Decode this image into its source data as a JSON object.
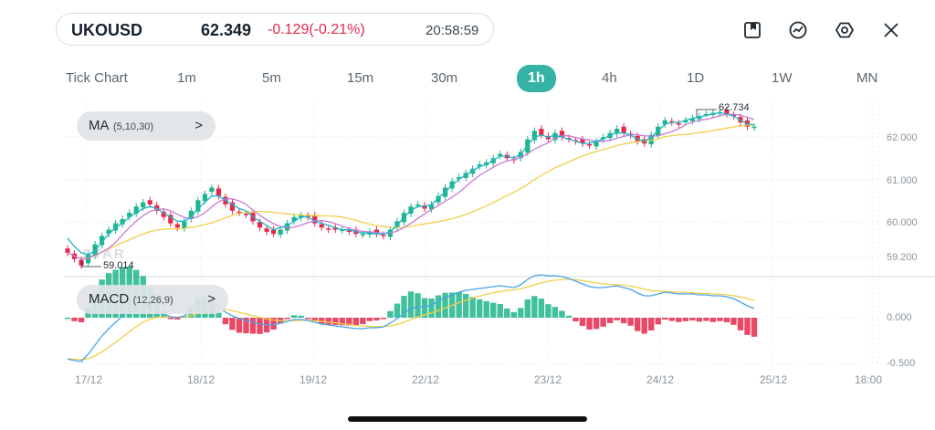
{
  "ticker": {
    "symbol": "UKOUSD",
    "price": "62.349",
    "change": "-0.129(-0.21%)",
    "time": "20:58:59"
  },
  "toolbar": {
    "icons": [
      "bookmark-icon",
      "trend-icon",
      "settings-hexagon-icon",
      "close-icon"
    ]
  },
  "timeframes": {
    "items": [
      "Tick Chart",
      "1m",
      "5m",
      "15m",
      "30m",
      "1h",
      "4h",
      "1D",
      "1W",
      "MN"
    ],
    "active": "1h"
  },
  "indicators": {
    "ma": {
      "name": "MA",
      "params": "(5,10,30)",
      "arrow": ">"
    },
    "macd": {
      "name": "MACD",
      "params": "(12,26,9)",
      "arrow": ">"
    }
  },
  "price_chart": {
    "y_ticks": [
      "62.000",
      "61.000",
      "60.000",
      "59.200"
    ],
    "high_label": "62.734",
    "low_label": "59.014",
    "watermark": "STAR"
  },
  "macd_chart": {
    "y_ticks": [
      "0.000",
      "-0.500"
    ]
  },
  "x_ticks": [
    "17/12",
    "18/12",
    "19/12",
    "22/12",
    "23/12",
    "24/12",
    "25/12",
    "18:00"
  ],
  "colors": {
    "accent": "#37b3a6",
    "up": "#1fb58a",
    "down": "#e5284b",
    "ma5": "#21b5c8",
    "ma10": "#c97ad6",
    "ma30": "#f0cf4a",
    "macd_line": "#4aa3e8",
    "signal_line": "#f0cf4a"
  },
  "chart_data": {
    "type": "candlestick",
    "symbol": "UKOUSD",
    "interval": "1h",
    "ylim": [
      59.0,
      62.8
    ],
    "series": [
      {
        "name": "close",
        "values": [
          59.35,
          59.2,
          59.05,
          59.3,
          59.55,
          59.75,
          59.9,
          60.05,
          60.15,
          60.3,
          60.45,
          60.55,
          60.5,
          60.35,
          60.2,
          60.05,
          59.95,
          60.1,
          60.35,
          60.6,
          60.75,
          60.9,
          60.7,
          60.5,
          60.35,
          60.3,
          60.25,
          60.1,
          59.95,
          59.85,
          59.8,
          59.9,
          60.05,
          60.2,
          60.25,
          60.2,
          60.05,
          59.95,
          59.9,
          59.9,
          59.9,
          59.85,
          59.8,
          59.8,
          59.85,
          59.8,
          59.75,
          59.9,
          60.1,
          60.3,
          60.45,
          60.5,
          60.4,
          60.5,
          60.7,
          60.9,
          61.05,
          61.15,
          61.25,
          61.35,
          61.45,
          61.5,
          61.6,
          61.7,
          61.6,
          61.55,
          61.75,
          62.05,
          62.25,
          62.15,
          62.05,
          62.2,
          62.1,
          62.05,
          62.0,
          61.95,
          61.9,
          62.0,
          62.1,
          62.2,
          62.3,
          62.2,
          62.15,
          62.0,
          61.95,
          62.15,
          62.35,
          62.5,
          62.45,
          62.4,
          62.5,
          62.55,
          62.6,
          62.65,
          62.68,
          62.7,
          62.65,
          62.6,
          62.45,
          62.35,
          62.35
        ]
      },
      {
        "name": "MA",
        "values": [
          59.7,
          59.5,
          59.35,
          59.3,
          59.4,
          59.6,
          59.8,
          59.95,
          60.05,
          60.2,
          60.3,
          60.4,
          60.45,
          60.4,
          60.3,
          60.2,
          60.1,
          60.1,
          60.2,
          60.4,
          60.55,
          60.7,
          60.7,
          60.6,
          60.5,
          60.4,
          60.35,
          60.2,
          60.1,
          60.0,
          59.9,
          59.95,
          60.0,
          60.1,
          60.2,
          60.2,
          60.1,
          60.05,
          60.0,
          59.95,
          59.9,
          59.9,
          59.85,
          59.82,
          59.82,
          59.8,
          59.8,
          59.85,
          60.0,
          60.2,
          60.35,
          60.45,
          60.45,
          60.5,
          60.65,
          60.8,
          60.95,
          61.1,
          61.2,
          61.3,
          61.4,
          61.45,
          61.55,
          61.65,
          61.65,
          61.6,
          61.7,
          61.9,
          62.1,
          62.15,
          62.1,
          62.15,
          62.1,
          62.05,
          62.0,
          61.95,
          61.95,
          62.0,
          62.05,
          62.15,
          62.2,
          62.2,
          62.15,
          62.05,
          62.0,
          62.1,
          62.25,
          62.4,
          62.45,
          62.45,
          62.5,
          62.55,
          62.58,
          62.62,
          62.65,
          62.68,
          62.65,
          62.6,
          62.5,
          62.42,
          62.38
        ]
      },
      {
        "name": "MACD",
        "values": [
          -0.45,
          -0.47,
          -0.48,
          -0.4,
          -0.3,
          -0.2,
          -0.12,
          -0.05,
          0.02,
          0.08,
          0.12,
          0.14,
          0.12,
          0.08,
          0.04,
          0.01,
          0.0,
          0.02,
          0.08,
          0.14,
          0.17,
          0.17,
          0.12,
          0.06,
          0.02,
          -0.01,
          -0.03,
          -0.05,
          -0.07,
          -0.08,
          -0.08,
          -0.06,
          -0.04,
          -0.02,
          -0.02,
          -0.03,
          -0.05,
          -0.07,
          -0.08,
          -0.09,
          -0.1,
          -0.11,
          -0.12,
          -0.12,
          -0.11,
          -0.11,
          -0.1,
          -0.06,
          -0.01,
          0.05,
          0.1,
          0.12,
          0.12,
          0.14,
          0.18,
          0.22,
          0.25,
          0.28,
          0.3,
          0.31,
          0.32,
          0.33,
          0.34,
          0.35,
          0.34,
          0.33,
          0.36,
          0.42,
          0.46,
          0.47,
          0.46,
          0.46,
          0.45,
          0.43,
          0.4,
          0.37,
          0.34,
          0.33,
          0.33,
          0.34,
          0.35,
          0.33,
          0.31,
          0.27,
          0.24,
          0.24,
          0.26,
          0.28,
          0.27,
          0.26,
          0.26,
          0.26,
          0.25,
          0.25,
          0.24,
          0.24,
          0.23,
          0.21,
          0.17,
          0.13,
          0.1
        ]
      }
    ],
    "ma_periods": [
      5,
      10,
      30
    ],
    "macd_params": [
      12,
      26,
      9
    ],
    "macd_ylim": [
      -0.5,
      0.6
    ]
  }
}
